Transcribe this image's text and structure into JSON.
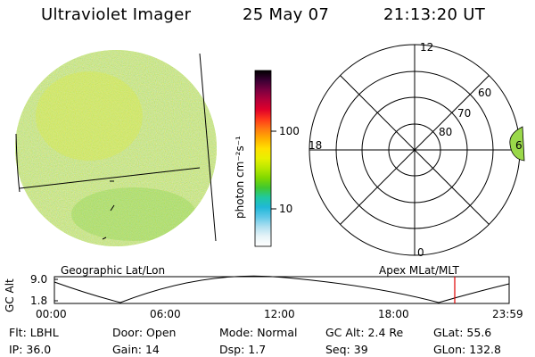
{
  "header": {
    "instrument": "Ultraviolet Imager",
    "date": "25 May 07",
    "time": "21:13:20 UT"
  },
  "colorbar": {
    "unit_label": "photon cm⁻²s⁻¹",
    "tick_labels": [
      "100",
      "10"
    ],
    "colors": [
      "#000000",
      "#3a0033",
      "#7a0040",
      "#b3003a",
      "#e0002a",
      "#ff3a1a",
      "#ff7a10",
      "#ffb000",
      "#ffe000",
      "#e8f000",
      "#b8e800",
      "#80d800",
      "#40c830",
      "#20c8a0",
      "#20b8d8",
      "#60c8e8",
      "#b0e0f0",
      "#e8f4f8",
      "#ffffff"
    ]
  },
  "polar_plot": {
    "mlt_labels": {
      "top": "12",
      "left": "18",
      "bottom": "0",
      "right": "6"
    },
    "lat_labels": [
      "60",
      "70",
      "80"
    ]
  },
  "timeline": {
    "y_label": "GC Alt",
    "y_ticks": [
      "9.0",
      "1.8"
    ],
    "left_caption": "Geographic Lat/Lon",
    "right_caption": "Apex MLat/MLT",
    "time_labels": [
      "00:00",
      "06:00",
      "12:00",
      "18:00",
      "23:59"
    ],
    "current_time_marker_color": "#e00000"
  },
  "status": {
    "row1": [
      {
        "label": "Flt:",
        "value": "LBHL"
      },
      {
        "label": "Door:",
        "value": "Open"
      },
      {
        "label": "Mode:",
        "value": "Normal"
      },
      {
        "label": "GC Alt:",
        "value": "2.4 Re"
      },
      {
        "label": "GLat:",
        "value": "55.6"
      }
    ],
    "row2": [
      {
        "label": "IP:",
        "value": "36.0"
      },
      {
        "label": "Gain:",
        "value": "14"
      },
      {
        "label": "Dsp:",
        "value": "1.7"
      },
      {
        "label": "Seq:",
        "value": "39"
      },
      {
        "label": "GLon:",
        "value": "132.8"
      }
    ]
  }
}
